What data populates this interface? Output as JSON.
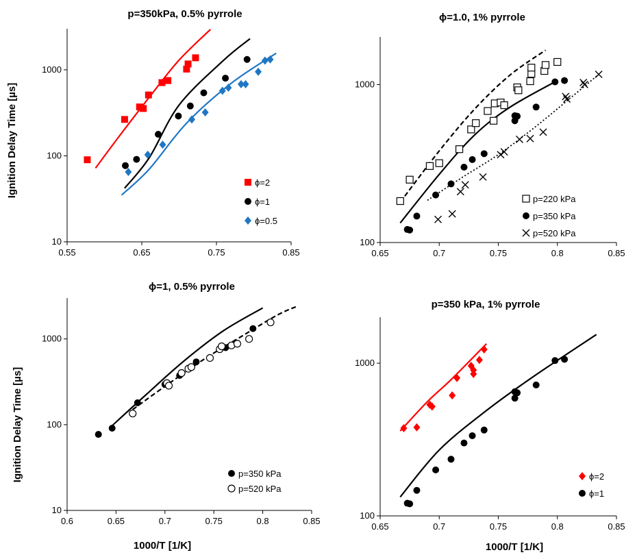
{
  "colors": {
    "red": "#ff0000",
    "black": "#000000",
    "blue": "#1f77c4"
  },
  "chart_data": [
    {
      "type": "scatter",
      "title": "p=350kPa, 0.5% pyrrole",
      "xlabel": "",
      "ylabel": "Ignition Delay Time [µs]",
      "xscale": "linear",
      "yscale": "log",
      "xlim": [
        0.55,
        0.85
      ],
      "ylim": [
        10,
        3000
      ],
      "xticks": [
        "0.55",
        "0.65",
        "0.75",
        "0.85"
      ],
      "yticks": [
        "10",
        "100",
        "1000"
      ],
      "legend_position": "bottom-right",
      "series": [
        {
          "name": "ϕ=2",
          "marker": "square",
          "color": "#ff0000",
          "x": [
            0.577,
            0.627,
            0.647,
            0.652,
            0.659,
            0.677,
            0.685,
            0.71,
            0.712,
            0.722
          ],
          "y": [
            90,
            265,
            370,
            355,
            510,
            710,
            750,
            1020,
            1170,
            1380
          ]
        },
        {
          "name": "ϕ=1",
          "marker": "circle",
          "color": "#000000",
          "x": [
            0.628,
            0.643,
            0.672,
            0.699,
            0.715,
            0.733,
            0.762,
            0.791
          ],
          "y": [
            77,
            91,
            178,
            290,
            380,
            540,
            800,
            1320
          ]
        },
        {
          "name": "ϕ=0.5",
          "marker": "diamond",
          "color": "#1f77c4",
          "x": [
            0.632,
            0.658,
            0.678,
            0.717,
            0.735,
            0.758,
            0.766,
            0.783,
            0.789,
            0.806,
            0.815,
            0.822
          ],
          "y": [
            65,
            103,
            135,
            265,
            320,
            570,
            620,
            680,
            680,
            950,
            1280,
            1320
          ]
        }
      ],
      "lines": [
        {
          "color": "#ff0000",
          "style": "solid",
          "x": [
            0.588,
            0.62,
            0.66,
            0.7,
            0.742
          ],
          "y": [
            72,
            170,
            480,
            1300,
            2950
          ]
        },
        {
          "color": "#000000",
          "style": "solid",
          "x": [
            0.627,
            0.66,
            0.7,
            0.76,
            0.795
          ],
          "y": [
            42,
            95,
            390,
            1300,
            2300
          ]
        },
        {
          "color": "#1f77c4",
          "style": "solid",
          "x": [
            0.623,
            0.66,
            0.71,
            0.77,
            0.83
          ],
          "y": [
            35,
            70,
            240,
            700,
            1560
          ]
        }
      ]
    },
    {
      "type": "scatter",
      "title": "ϕ=1.0, 1% pyrrole",
      "xlabel": "",
      "ylabel": "",
      "xscale": "linear",
      "yscale": "log",
      "xlim": [
        0.65,
        0.85
      ],
      "ylim": [
        100,
        2000
      ],
      "xticks": [
        "0.65",
        "0.7",
        "0.75",
        "0.8",
        "0.85"
      ],
      "yticks": [
        "100",
        "1000"
      ],
      "legend_position": "bottom-right",
      "series": [
        {
          "name": "p=220 kPa",
          "marker": "open-square",
          "color": "#000000",
          "x": [
            0.667,
            0.675,
            0.692,
            0.7,
            0.717,
            0.727,
            0.731,
            0.741,
            0.746,
            0.747,
            0.752,
            0.755,
            0.766,
            0.767,
            0.777,
            0.778,
            0.778,
            0.789,
            0.79,
            0.8
          ],
          "y": [
            183,
            250,
            305,
            318,
            390,
            520,
            570,
            680,
            590,
            760,
            770,
            740,
            960,
            920,
            1050,
            1170,
            1280,
            1220,
            1330,
            1390
          ]
        },
        {
          "name": "p=350 kPa",
          "marker": "circle",
          "color": "#000000",
          "x": [
            0.673,
            0.675,
            0.681,
            0.697,
            0.71,
            0.721,
            0.728,
            0.738,
            0.764,
            0.764,
            0.766,
            0.782,
            0.798,
            0.806
          ],
          "y": [
            121,
            120,
            147,
            200,
            235,
            300,
            335,
            365,
            635,
            590,
            630,
            720,
            1040,
            1060
          ]
        },
        {
          "name": "p=520 kPa",
          "marker": "cross",
          "color": "#000000",
          "x": [
            0.699,
            0.711,
            0.718,
            0.722,
            0.737,
            0.752,
            0.755,
            0.768,
            0.777,
            0.788,
            0.807,
            0.808,
            0.822,
            0.823,
            0.835
          ],
          "y": [
            140,
            152,
            210,
            232,
            260,
            360,
            375,
            450,
            455,
            500,
            840,
            810,
            1030,
            1000,
            1160
          ]
        }
      ],
      "lines": [
        {
          "color": "#000000",
          "style": "dashed",
          "x": [
            0.667,
            0.7,
            0.73,
            0.76,
            0.79
          ],
          "y": [
            180,
            380,
            700,
            1150,
            1650
          ]
        },
        {
          "color": "#000000",
          "style": "solid",
          "x": [
            0.667,
            0.7,
            0.73,
            0.76,
            0.8
          ],
          "y": [
            133,
            270,
            480,
            720,
            1060
          ]
        },
        {
          "color": "#000000",
          "style": "dotted",
          "x": [
            0.69,
            0.72,
            0.75,
            0.78,
            0.81,
            0.835
          ],
          "y": [
            185,
            260,
            360,
            530,
            810,
            1160
          ]
        }
      ]
    },
    {
      "type": "scatter",
      "title": "ϕ=1, 0.5% pyrrole",
      "xlabel": "1000/T [1/K]",
      "ylabel": "Ignition Delay Time [µs]",
      "xscale": "linear",
      "yscale": "log",
      "xlim": [
        0.6,
        0.85
      ],
      "ylim": [
        10,
        3000
      ],
      "xticks": [
        "0.6",
        "0.65",
        "0.7",
        "0.75",
        "0.8",
        "0.85"
      ],
      "yticks": [
        "10",
        "100",
        "1000"
      ],
      "legend_position": "bottom-right",
      "series": [
        {
          "name": "p=350 kPa",
          "marker": "circle",
          "color": "#000000",
          "x": [
            0.632,
            0.646,
            0.672,
            0.7,
            0.715,
            0.732,
            0.762,
            0.79
          ],
          "y": [
            77,
            91,
            180,
            295,
            375,
            540,
            790,
            1320
          ]
        },
        {
          "name": "p=520 kPa",
          "marker": "open-circle",
          "color": "#000000",
          "x": [
            0.667,
            0.702,
            0.704,
            0.717,
            0.724,
            0.727,
            0.746,
            0.756,
            0.758,
            0.768,
            0.774,
            0.786,
            0.808
          ],
          "y": [
            135,
            305,
            285,
            400,
            450,
            470,
            600,
            760,
            820,
            840,
            880,
            1000,
            1560
          ]
        }
      ],
      "lines": [
        {
          "color": "#000000",
          "style": "solid",
          "x": [
            0.645,
            0.68,
            0.72,
            0.76,
            0.8
          ],
          "y": [
            95,
            220,
            560,
            1250,
            2300
          ]
        },
        {
          "color": "#000000",
          "style": "dashed",
          "x": [
            0.667,
            0.7,
            0.74,
            0.78,
            0.815,
            0.835
          ],
          "y": [
            150,
            280,
            580,
            1100,
            1900,
            2400
          ]
        }
      ]
    },
    {
      "type": "scatter",
      "title": "p=350 kPa, 1% pyrrole",
      "xlabel": "1000/T [1/K]",
      "ylabel": "",
      "xscale": "linear",
      "yscale": "log",
      "xlim": [
        0.65,
        0.85
      ],
      "ylim": [
        100,
        2000
      ],
      "xticks": [
        "0.65",
        "0.7",
        "0.75",
        "0.8",
        "0.85"
      ],
      "yticks": [
        "100",
        "1000"
      ],
      "legend_position": "bottom-right",
      "series": [
        {
          "name": "ϕ=2",
          "marker": "diamond",
          "color": "#ff0000",
          "x": [
            0.67,
            0.681,
            0.692,
            0.694,
            0.711,
            0.715,
            0.727,
            0.729,
            0.729,
            0.734,
            0.738
          ],
          "y": [
            375,
            380,
            535,
            520,
            615,
            800,
            960,
            900,
            850,
            1050,
            1230
          ]
        },
        {
          "name": "ϕ=1",
          "marker": "circle",
          "color": "#000000",
          "x": [
            0.673,
            0.675,
            0.681,
            0.697,
            0.71,
            0.721,
            0.728,
            0.738,
            0.764,
            0.764,
            0.766,
            0.782,
            0.798,
            0.806
          ],
          "y": [
            121,
            120,
            147,
            200,
            235,
            300,
            335,
            365,
            650,
            590,
            640,
            720,
            1040,
            1060
          ]
        }
      ],
      "lines": [
        {
          "color": "#ff0000",
          "style": "solid",
          "x": [
            0.667,
            0.69,
            0.71,
            0.74
          ],
          "y": [
            360,
            560,
            780,
            1340
          ]
        },
        {
          "color": "#000000",
          "style": "solid",
          "x": [
            0.667,
            0.7,
            0.74,
            0.78,
            0.833
          ],
          "y": [
            133,
            270,
            490,
            820,
            1540
          ]
        }
      ]
    }
  ]
}
